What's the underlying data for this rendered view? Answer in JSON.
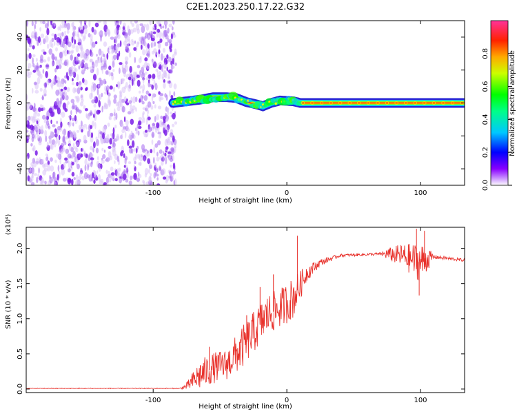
{
  "title": "C2E1.2023.250.17.22.G32",
  "chart_data": [
    {
      "type": "heatmap",
      "xlabel": "Height of straight line (km)",
      "ylabel": "Frequency (Hz)",
      "xlim": [
        -195,
        133
      ],
      "ylim": [
        -50,
        50
      ],
      "xticks": [
        -100,
        0,
        100
      ],
      "yticks": [
        -40,
        -20,
        0,
        20,
        40
      ],
      "grid": false,
      "colorbar": {
        "label": "Normalized spectral amplitude",
        "range": [
          0.0,
          1.0
        ],
        "ticks": [
          0.0,
          0.2,
          0.4,
          0.6,
          0.8
        ]
      },
      "regions": [
        {
          "x_start": -195,
          "x_end": -83,
          "freq_range": [
            -50,
            50
          ],
          "amplitude": [
            0.02,
            0.25
          ]
        },
        {
          "x_start": -85,
          "x_end": 133,
          "freq_center": 0,
          "amplitude": 1.0
        }
      ],
      "center_track": [
        {
          "x": -85,
          "y": 0
        },
        {
          "x": -75,
          "y": 1
        },
        {
          "x": -65,
          "y": 2
        },
        {
          "x": -55,
          "y": 3.5
        },
        {
          "x": -45,
          "y": 3.5
        },
        {
          "x": -38,
          "y": 3
        },
        {
          "x": -30,
          "y": 0.5
        },
        {
          "x": -22,
          "y": -1
        },
        {
          "x": -18,
          "y": -2
        },
        {
          "x": -12,
          "y": 0
        },
        {
          "x": -5,
          "y": 1.5
        },
        {
          "x": 5,
          "y": 1
        },
        {
          "x": 10,
          "y": 0
        },
        {
          "x": 133,
          "y": 0
        }
      ]
    },
    {
      "type": "line",
      "xlabel": "Height of straight line (km)",
      "ylabel": "SNR (10 * v/v)",
      "multiplier": "(x10⁴)",
      "xlim": [
        -195,
        133
      ],
      "ylim": [
        -0.05,
        2.3
      ],
      "xticks": [
        -100,
        0,
        100
      ],
      "yticks": [
        0.0,
        0.5,
        1.0,
        1.5,
        2.0
      ],
      "yticklabels": [
        "0.0",
        "0.5",
        "1.0",
        "1.5",
        "2.0"
      ],
      "grid": false,
      "series": [
        {
          "color": "#e8322c",
          "envelope": [
            {
              "x": -195,
              "base": 0.01,
              "noise": 0.006
            },
            {
              "x": -80,
              "base": 0.01,
              "noise": 0.006
            },
            {
              "x": -75,
              "base": 0.04,
              "noise": 0.05
            },
            {
              "x": -65,
              "base": 0.2,
              "noise": 0.22
            },
            {
              "x": -55,
              "base": 0.3,
              "noise": 0.22
            },
            {
              "x": -45,
              "base": 0.35,
              "noise": 0.22
            },
            {
              "x": -35,
              "base": 0.55,
              "noise": 0.3
            },
            {
              "x": -25,
              "base": 0.8,
              "noise": 0.3
            },
            {
              "x": -15,
              "base": 1.05,
              "noise": 0.3
            },
            {
              "x": -5,
              "base": 1.15,
              "noise": 0.28
            },
            {
              "x": 5,
              "base": 1.3,
              "noise": 0.3
            },
            {
              "x": 15,
              "base": 1.65,
              "noise": 0.12
            },
            {
              "x": 25,
              "base": 1.8,
              "noise": 0.05
            },
            {
              "x": 40,
              "base": 1.9,
              "noise": 0.02
            },
            {
              "x": 70,
              "base": 1.92,
              "noise": 0.02
            },
            {
              "x": 75,
              "base": 1.92,
              "noise": 0.08
            },
            {
              "x": 85,
              "base": 1.9,
              "noise": 0.16
            },
            {
              "x": 100,
              "base": 1.8,
              "noise": 0.28
            },
            {
              "x": 105,
              "base": 1.85,
              "noise": 0.18
            },
            {
              "x": 110,
              "base": 1.88,
              "noise": 0.03
            },
            {
              "x": 133,
              "base": 1.83,
              "noise": 0.02
            }
          ],
          "spikes": [
            {
              "x": 8,
              "y": 2.18
            },
            {
              "x": 97,
              "y": 2.28
            },
            {
              "x": 103,
              "y": 2.25
            },
            {
              "x": -10,
              "y": 1.63
            },
            {
              "x": -20,
              "y": 1.45
            },
            {
              "x": -30,
              "y": 1.05
            },
            {
              "x": -58,
              "y": 0.6
            },
            {
              "x": 99,
              "y": 1.33
            }
          ]
        }
      ]
    }
  ]
}
